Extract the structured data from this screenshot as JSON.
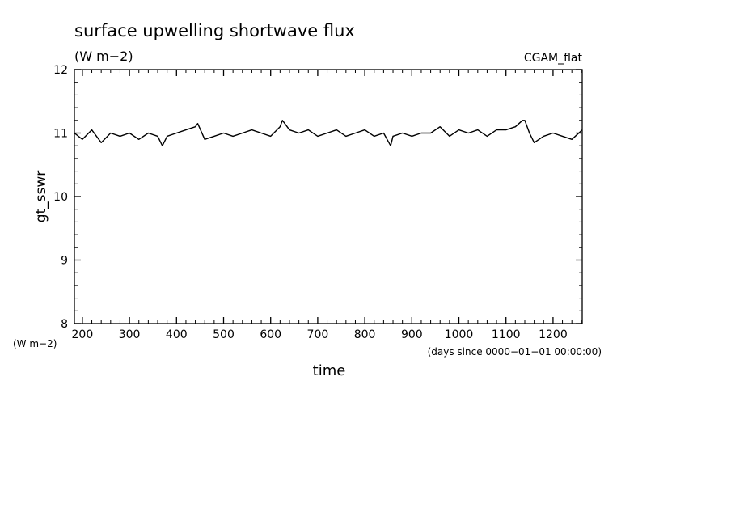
{
  "chart_data": {
    "type": "line",
    "title": "surface upwelling shortwave flux",
    "units": "(W m−2)",
    "run_label": "CGAM_flat",
    "ylabel": "gt_sswr",
    "yunit_label": "(W m−2)",
    "xlabel": "time",
    "xunit_label": "(days since 0000−01−01 00:00:00)",
    "xlim": [
      183,
      1262
    ],
    "ylim": [
      8,
      12
    ],
    "xticks": [
      200,
      300,
      400,
      500,
      600,
      700,
      800,
      900,
      1000,
      1100,
      1200
    ],
    "yticks": [
      8,
      9,
      10,
      11,
      12
    ],
    "grid": false,
    "line_color": "#000000",
    "series": [
      {
        "name": "",
        "x": [
          183,
          200,
          220,
          240,
          260,
          280,
          300,
          320,
          340,
          360,
          370,
          380,
          400,
          420,
          440,
          445,
          460,
          480,
          500,
          520,
          540,
          560,
          580,
          600,
          620,
          625,
          640,
          660,
          680,
          700,
          720,
          740,
          760,
          780,
          800,
          820,
          840,
          855,
          860,
          880,
          900,
          920,
          940,
          960,
          980,
          1000,
          1020,
          1040,
          1060,
          1080,
          1100,
          1120,
          1135,
          1140,
          1150,
          1160,
          1180,
          1200,
          1220,
          1240,
          1262
        ],
        "y": [
          11.0,
          10.9,
          11.05,
          10.85,
          11.0,
          10.95,
          11.0,
          10.9,
          11.0,
          10.95,
          10.8,
          10.95,
          11.0,
          11.05,
          11.1,
          11.15,
          10.9,
          10.95,
          11.0,
          10.95,
          11.0,
          11.05,
          11.0,
          10.95,
          11.1,
          11.2,
          11.05,
          11.0,
          11.05,
          10.95,
          11.0,
          11.05,
          10.95,
          11.0,
          11.05,
          10.95,
          11.0,
          10.8,
          10.95,
          11.0,
          10.95,
          11.0,
          11.0,
          11.1,
          10.95,
          11.05,
          11.0,
          11.05,
          10.95,
          11.05,
          11.05,
          11.1,
          11.2,
          11.2,
          11.0,
          10.85,
          10.95,
          11.0,
          10.95,
          10.9,
          11.05
        ]
      }
    ]
  }
}
